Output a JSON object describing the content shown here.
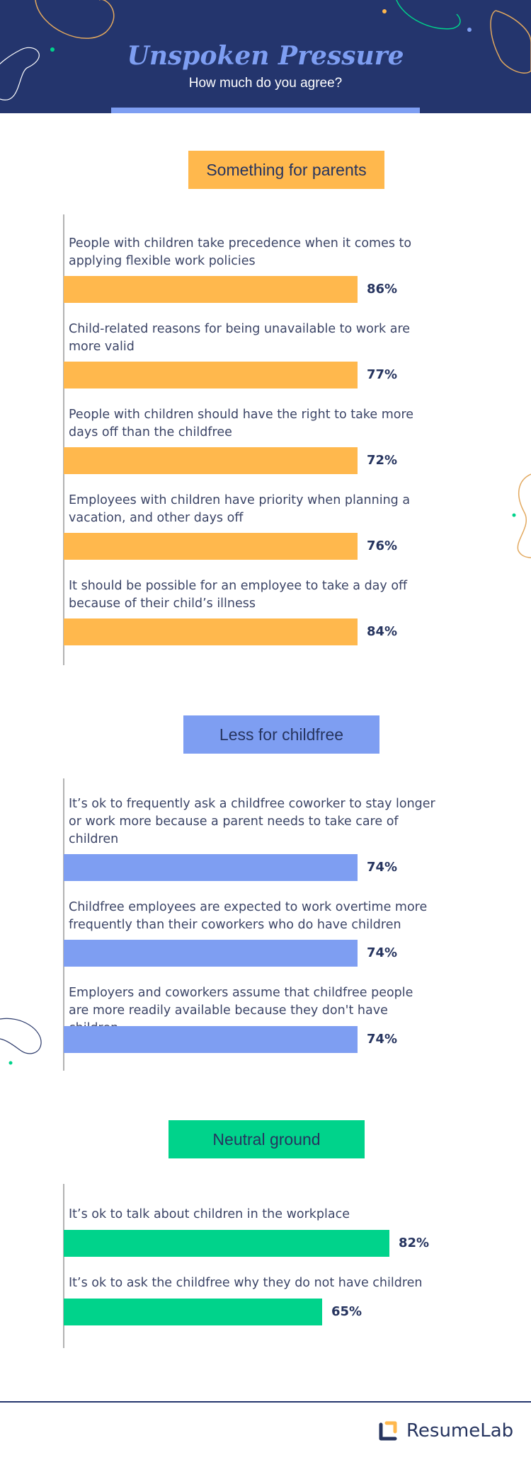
{
  "header": {
    "title": "Unspoken Pressure",
    "subtitle": "How much do you agree?"
  },
  "colors": {
    "header_bg": "#24356d",
    "parents": "#ffb84d",
    "childfree": "#7e9ef2",
    "neutral": "#00d38b",
    "text": "#26345f"
  },
  "chart_data": {
    "type": "bar",
    "orientation": "horizontal",
    "unit": "%",
    "xlim": [
      0,
      100
    ],
    "groups": [
      {
        "title": "Something for parents",
        "color": "#ffb84d",
        "items": [
          {
            "label": "People with children take precedence when it comes to applying flexible work policies",
            "value": 86,
            "display": "86%"
          },
          {
            "label": "Child-related reasons for being unavailable to work are more valid",
            "value": 77,
            "display": "77%"
          },
          {
            "label": "People with children should have the right to take more days off than the childfree",
            "value": 72,
            "display": "72%"
          },
          {
            "label": "Employees with children have priority when planning a vacation, and other days off",
            "value": 76,
            "display": "76%"
          },
          {
            "label": "It should be possible for an employee to take a day off because of their child’s illness",
            "value": 84,
            "display": "84%"
          }
        ]
      },
      {
        "title": "Less for childfree",
        "color": "#7e9ef2",
        "items": [
          {
            "label": "It’s ok to frequently ask a childfree coworker to stay longer or work more because a parent needs to take care of children",
            "value": 74,
            "display": "74%"
          },
          {
            "label": "Childfree employees are expected to work overtime more frequently than their coworkers who do have children",
            "value": 74,
            "display": "74%"
          },
          {
            "label": "Employers and coworkers assume that childfree people are more readily available because they don't have children",
            "value": 74,
            "display": "74%"
          }
        ]
      },
      {
        "title": "Neutral ground",
        "color": "#00d38b",
        "items": [
          {
            "label": "It’s ok to talk about children in the workplace",
            "value": 82,
            "display": "82%"
          },
          {
            "label": "It’s ok to ask the childfree why they do not have children",
            "value": 65,
            "display": "65%"
          }
        ]
      }
    ]
  },
  "footer": {
    "brand_prefix": "Resume",
    "brand_suffix": "Lab"
  }
}
